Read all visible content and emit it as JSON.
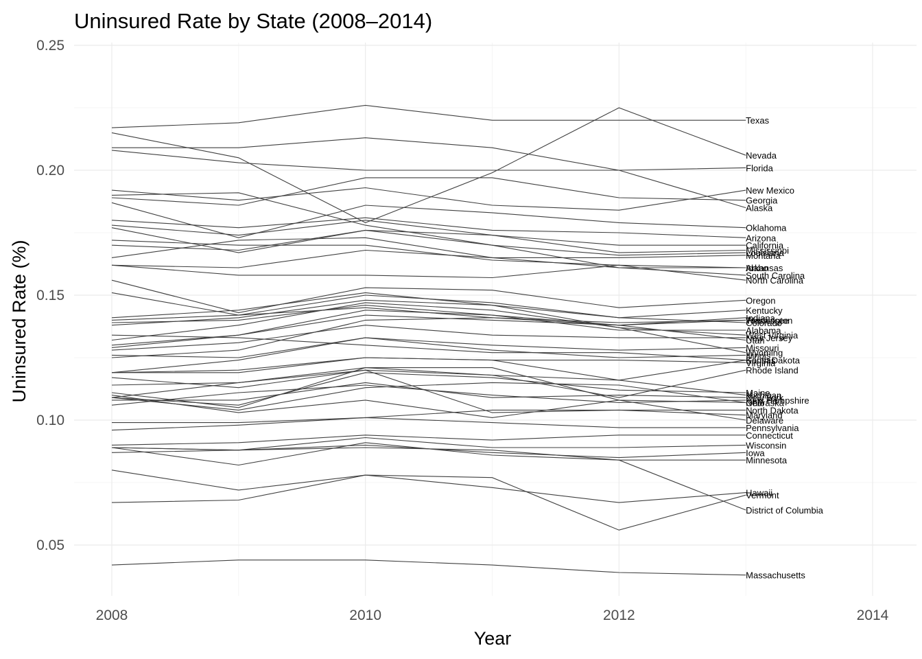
{
  "chart_data": {
    "type": "line",
    "title": "Uninsured Rate by State (2008–2014)",
    "xlabel": "Year",
    "ylabel": "Uninsured Rate (%)",
    "xlim": [
      2008,
      2014
    ],
    "ylim": [
      0.03,
      0.25
    ],
    "x_ticks": [
      2008,
      2010,
      2012,
      2014
    ],
    "y_ticks": [
      0.05,
      0.1,
      0.15,
      0.2,
      0.25
    ],
    "y_tick_labels": [
      "0.05",
      "0.10",
      "0.15",
      "0.20",
      "0.25"
    ],
    "grid": true,
    "line_color": "#3f3f3f",
    "x": [
      2008,
      2009,
      2010,
      2011,
      2012,
      2013
    ],
    "series": [
      {
        "name": "Texas",
        "values": [
          0.217,
          0.219,
          0.226,
          0.22,
          0.22,
          0.22
        ]
      },
      {
        "name": "Nevada",
        "values": [
          0.215,
          0.205,
          0.179,
          0.199,
          0.225,
          0.206
        ]
      },
      {
        "name": "Florida",
        "values": [
          0.208,
          0.203,
          0.2,
          0.2,
          0.2,
          0.201
        ]
      },
      {
        "name": "New Mexico",
        "values": [
          0.192,
          0.188,
          0.193,
          0.186,
          0.184,
          0.192
        ]
      },
      {
        "name": "Georgia",
        "values": [
          0.189,
          0.186,
          0.197,
          0.197,
          0.189,
          0.188
        ]
      },
      {
        "name": "Alaska",
        "values": [
          0.209,
          0.209,
          0.213,
          0.209,
          0.2,
          0.185
        ]
      },
      {
        "name": "Oklahoma",
        "values": [
          0.187,
          0.173,
          0.186,
          0.183,
          0.179,
          0.177
        ]
      },
      {
        "name": "Arizona",
        "values": [
          0.18,
          0.177,
          0.181,
          0.176,
          0.175,
          0.173
        ]
      },
      {
        "name": "California",
        "values": [
          0.178,
          0.174,
          0.18,
          0.174,
          0.17,
          0.17
        ]
      },
      {
        "name": "Mississippi",
        "values": [
          0.17,
          0.168,
          0.176,
          0.174,
          0.167,
          0.168
        ]
      },
      {
        "name": "Louisiana",
        "values": [
          0.19,
          0.191,
          0.178,
          0.17,
          0.166,
          0.167
        ]
      },
      {
        "name": "Montana",
        "values": [
          0.165,
          0.172,
          0.173,
          0.165,
          0.165,
          0.166
        ]
      },
      {
        "name": "Idaho",
        "values": [
          0.172,
          0.17,
          0.17,
          0.164,
          0.162,
          0.161
        ]
      },
      {
        "name": "Arkansas",
        "values": [
          0.162,
          0.161,
          0.168,
          0.165,
          0.161,
          0.161
        ]
      },
      {
        "name": "South Carolina",
        "values": [
          0.177,
          0.167,
          0.176,
          0.17,
          0.161,
          0.158
        ]
      },
      {
        "name": "North Carolina",
        "values": [
          0.162,
          0.158,
          0.158,
          0.157,
          0.162,
          0.156
        ]
      },
      {
        "name": "Oregon",
        "values": [
          0.156,
          0.143,
          0.153,
          0.152,
          0.145,
          0.148
        ]
      },
      {
        "name": "Kentucky",
        "values": [
          0.138,
          0.141,
          0.148,
          0.146,
          0.141,
          0.144
        ]
      },
      {
        "name": "Washington",
        "values": [
          0.14,
          0.142,
          0.145,
          0.141,
          0.139,
          0.14
        ]
      },
      {
        "name": "West Virginia",
        "values": [
          0.132,
          0.138,
          0.147,
          0.144,
          0.137,
          0.134
        ]
      },
      {
        "name": "Colorado",
        "values": [
          0.151,
          0.142,
          0.15,
          0.147,
          0.141,
          0.139
        ]
      },
      {
        "name": "Indiana",
        "values": [
          0.125,
          0.128,
          0.14,
          0.141,
          0.138,
          0.141
        ]
      },
      {
        "name": "Alabama",
        "values": [
          0.129,
          0.134,
          0.144,
          0.142,
          0.136,
          0.136
        ]
      },
      {
        "name": "New Jersey",
        "values": [
          0.128,
          0.131,
          0.138,
          0.134,
          0.133,
          0.133
        ]
      },
      {
        "name": "Utah",
        "values": [
          0.13,
          0.134,
          0.142,
          0.14,
          0.138,
          0.132
        ]
      },
      {
        "name": "Tennessee",
        "values": [
          0.139,
          0.14,
          0.146,
          0.142,
          0.138,
          0.14
        ]
      },
      {
        "name": "Missouri",
        "values": [
          0.126,
          0.125,
          0.133,
          0.13,
          0.128,
          0.129
        ]
      },
      {
        "name": "Wyoming",
        "values": [
          0.141,
          0.144,
          0.151,
          0.146,
          0.137,
          0.127
        ]
      },
      {
        "name": "Illinois",
        "values": [
          0.119,
          0.124,
          0.133,
          0.128,
          0.125,
          0.126
        ]
      },
      {
        "name": "South Dakota",
        "values": [
          0.114,
          0.115,
          0.121,
          0.118,
          0.116,
          0.124
        ]
      },
      {
        "name": "Virginia",
        "values": [
          0.119,
          0.12,
          0.125,
          0.124,
          0.124,
          0.123
        ]
      },
      {
        "name": "Kansas",
        "values": [
          0.134,
          0.133,
          0.13,
          0.127,
          0.127,
          0.124
        ]
      },
      {
        "name": "Rhode Island",
        "values": [
          0.109,
          0.115,
          0.12,
          0.118,
          0.109,
          0.12
        ]
      },
      {
        "name": "Michigan",
        "values": [
          0.119,
          0.119,
          0.125,
          0.124,
          0.116,
          0.11
        ]
      },
      {
        "name": "Maine",
        "values": [
          0.109,
          0.106,
          0.119,
          0.117,
          0.112,
          0.111
        ]
      },
      {
        "name": "New York",
        "values": [
          0.108,
          0.108,
          0.115,
          0.109,
          0.11,
          0.109
        ]
      },
      {
        "name": "New Hampshire",
        "values": [
          0.106,
          0.111,
          0.114,
          0.11,
          0.107,
          0.108
        ]
      },
      {
        "name": "Ohio",
        "values": [
          0.111,
          0.105,
          0.121,
          0.121,
          0.108,
          0.107
        ]
      },
      {
        "name": "Nebraska",
        "values": [
          0.109,
          0.104,
          0.113,
          0.115,
          0.114,
          0.107
        ]
      },
      {
        "name": "North Dakota",
        "values": [
          0.099,
          0.099,
          0.101,
          0.104,
          0.104,
          0.104
        ]
      },
      {
        "name": "Maryland",
        "values": [
          0.117,
          0.113,
          0.12,
          0.103,
          0.104,
          0.102
        ]
      },
      {
        "name": "Delaware",
        "values": [
          0.11,
          0.103,
          0.108,
          0.101,
          0.108,
          0.1
        ]
      },
      {
        "name": "Pennsylvania",
        "values": [
          0.096,
          0.098,
          0.101,
          0.099,
          0.097,
          0.097
        ]
      },
      {
        "name": "Connecticut",
        "values": [
          0.09,
          0.091,
          0.094,
          0.092,
          0.094,
          0.094
        ]
      },
      {
        "name": "Wisconsin",
        "values": [
          0.089,
          0.088,
          0.093,
          0.089,
          0.089,
          0.09
        ]
      },
      {
        "name": "Iowa",
        "values": [
          0.087,
          0.088,
          0.09,
          0.087,
          0.085,
          0.087
        ]
      },
      {
        "name": "Minnesota",
        "values": [
          0.089,
          0.082,
          0.091,
          0.086,
          0.084,
          0.084
        ]
      },
      {
        "name": "Hawaii",
        "values": [
          0.067,
          0.068,
          0.078,
          0.073,
          0.067,
          0.071
        ]
      },
      {
        "name": "Vermont",
        "values": [
          0.08,
          0.072,
          0.078,
          0.077,
          0.056,
          0.07
        ]
      },
      {
        "name": "District of Columbia",
        "values": [
          0.089,
          0.088,
          0.089,
          0.088,
          0.084,
          0.064
        ]
      },
      {
        "name": "Massachusetts",
        "values": [
          0.042,
          0.044,
          0.044,
          0.042,
          0.039,
          0.038
        ]
      }
    ]
  }
}
